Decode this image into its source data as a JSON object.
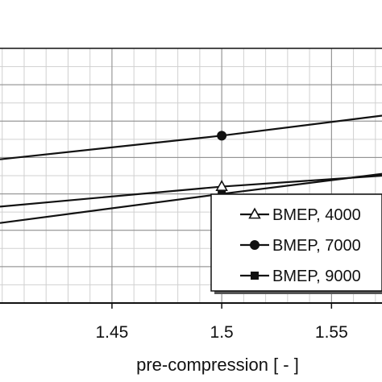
{
  "chart_data": {
    "type": "line",
    "xlabel": "pre-compression [ - ]",
    "ylabel": "",
    "x_ticks": [
      1.45,
      1.5,
      1.55
    ],
    "x_tick_labels": [
      "1.45",
      "1.5",
      "1.55"
    ],
    "xlim": [
      1.399,
      1.573
    ],
    "ylim": [
      0,
      7
    ],
    "grid": true,
    "legend": "bottom-right",
    "series": [
      {
        "name": "BMEP, 4000",
        "marker": "triangle-open",
        "x": [
          1.399,
          1.5,
          1.573
        ],
        "y": [
          2.65,
          3.2,
          3.5
        ],
        "marker_x": [
          1.5
        ]
      },
      {
        "name": "BMEP, 7000",
        "marker": "circle-filled",
        "x": [
          1.399,
          1.5,
          1.573
        ],
        "y": [
          3.95,
          4.6,
          5.15
        ],
        "marker_x": [
          1.5
        ]
      },
      {
        "name": "BMEP, 9000",
        "marker": "square-filled",
        "x": [
          1.399,
          1.5,
          1.573
        ],
        "y": [
          2.2,
          3.0,
          3.55
        ],
        "marker_x": [
          1.5
        ]
      }
    ]
  }
}
